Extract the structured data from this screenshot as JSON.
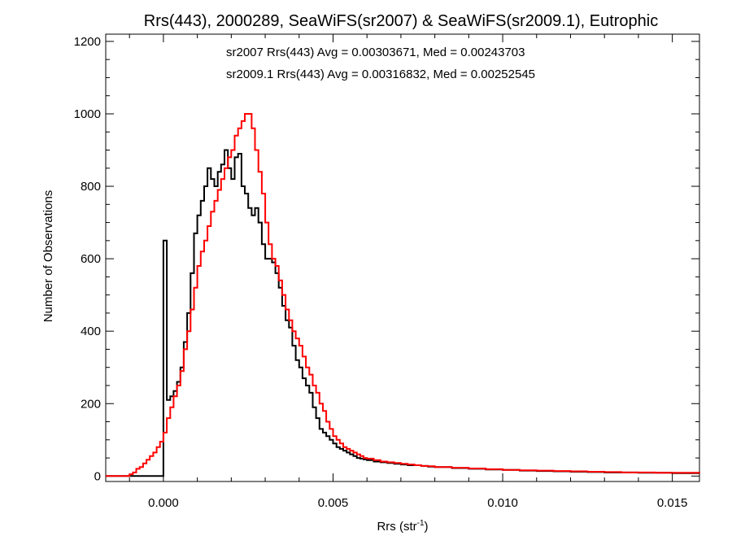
{
  "chart_data": {
    "type": "step-histogram",
    "title": "Rrs(443), 2000289, SeaWiFS(sr2007) & SeaWiFS(sr2009.1), Eutrophic",
    "xlabel_main": "Rrs (str",
    "xlabel_sup": "-1",
    "xlabel_close": ")",
    "ylabel": "Number of Observations",
    "xlim": [
      -0.0017,
      0.0158
    ],
    "ylim": [
      -15,
      1220
    ],
    "x_ticks": [
      0.0,
      0.005,
      0.01,
      0.015
    ],
    "x_tick_labels": [
      "0.000",
      "0.005",
      "0.010",
      "0.015"
    ],
    "y_ticks": [
      0,
      200,
      400,
      600,
      800,
      1000,
      1200
    ],
    "y_tick_labels": [
      "0",
      "200",
      "400",
      "600",
      "800",
      "1000",
      "1200"
    ],
    "annotations": [
      {
        "text": "sr2007 Rrs(443) Avg = 0.00303671, Med = 0.00243703",
        "color": "#000000"
      },
      {
        "text": "sr2009.1 Rrs(443) Avg = 0.00316832, Med = 0.00252545",
        "color": "#ff0000"
      }
    ],
    "series": [
      {
        "color": "#000000",
        "x": [
          -0.0017,
          -0.001,
          -0.0005,
          -0.0001,
          -5e-05,
          0,
          0.0001,
          0.0002,
          0.0003,
          0.0004,
          0.0005,
          0.0006,
          0.0007,
          0.0008,
          0.0009,
          0.001,
          0.0011,
          0.0012,
          0.0013,
          0.0014,
          0.0015,
          0.0016,
          0.0017,
          0.0018,
          0.0019,
          0.002,
          0.0021,
          0.0022,
          0.0023,
          0.0024,
          0.0025,
          0.0026,
          0.0027,
          0.0028,
          0.0029,
          0.003,
          0.0031,
          0.0032,
          0.0033,
          0.0034,
          0.0035,
          0.0036,
          0.0037,
          0.0038,
          0.0039,
          0.004,
          0.0041,
          0.0042,
          0.0043,
          0.0044,
          0.0045,
          0.0046,
          0.0047,
          0.0048,
          0.0049,
          0.005,
          0.0051,
          0.0052,
          0.0053,
          0.0054,
          0.0055,
          0.0056,
          0.0057,
          0.0058,
          0.0059,
          0.006,
          0.0062,
          0.0064,
          0.0066,
          0.0068,
          0.007,
          0.0072,
          0.0074,
          0.0076,
          0.0078,
          0.008,
          0.0085,
          0.009,
          0.0095,
          0.01,
          0.0105,
          0.011,
          0.0115,
          0.012,
          0.0125,
          0.013,
          0.0135,
          0.014,
          0.0145,
          0.015,
          0.0155,
          0.0158
        ],
        "values": [
          0,
          0,
          0,
          0,
          0,
          650,
          210,
          220,
          235,
          260,
          300,
          370,
          450,
          560,
          670,
          720,
          760,
          800,
          850,
          820,
          800,
          840,
          860,
          900,
          850,
          820,
          880,
          890,
          800,
          780,
          740,
          720,
          740,
          700,
          640,
          600,
          600,
          590,
          560,
          520,
          470,
          430,
          410,
          360,
          320,
          300,
          270,
          250,
          230,
          190,
          160,
          130,
          120,
          110,
          100,
          90,
          80,
          75,
          70,
          65,
          60,
          55,
          50,
          48,
          46,
          44,
          40,
          38,
          36,
          34,
          32,
          30,
          30,
          28,
          26,
          25,
          22,
          20,
          18,
          17,
          15,
          14,
          13,
          12,
          11,
          10,
          10,
          9,
          9,
          8,
          8,
          8
        ]
      },
      {
        "color": "#ff0000",
        "x": [
          -0.0017,
          -0.0012,
          -0.001,
          -0.0009,
          -0.0008,
          -0.0007,
          -0.0006,
          -0.0005,
          -0.0004,
          -0.0003,
          -0.0002,
          -0.0001,
          0,
          0.0001,
          0.0002,
          0.0003,
          0.0004,
          0.0005,
          0.0006,
          0.0007,
          0.0008,
          0.0009,
          0.001,
          0.0011,
          0.0012,
          0.0013,
          0.0014,
          0.0015,
          0.0016,
          0.0017,
          0.0018,
          0.0019,
          0.002,
          0.0021,
          0.0022,
          0.0023,
          0.0024,
          0.0025,
          0.0026,
          0.0027,
          0.0028,
          0.0029,
          0.003,
          0.0031,
          0.0032,
          0.0033,
          0.0034,
          0.0035,
          0.0036,
          0.0037,
          0.0038,
          0.0039,
          0.004,
          0.0041,
          0.0042,
          0.0043,
          0.0044,
          0.0045,
          0.0046,
          0.0047,
          0.0048,
          0.0049,
          0.005,
          0.0051,
          0.0052,
          0.0053,
          0.0054,
          0.0055,
          0.0056,
          0.0057,
          0.0058,
          0.0059,
          0.006,
          0.0062,
          0.0064,
          0.0066,
          0.0068,
          0.007,
          0.0072,
          0.0074,
          0.0076,
          0.0078,
          0.008,
          0.0085,
          0.009,
          0.0095,
          0.01,
          0.0105,
          0.011,
          0.0115,
          0.012,
          0.0125,
          0.013,
          0.0135,
          0.014,
          0.0145,
          0.015,
          0.0155,
          0.0158
        ],
        "values": [
          0,
          0,
          5,
          10,
          20,
          25,
          35,
          45,
          55,
          65,
          80,
          95,
          120,
          160,
          190,
          220,
          250,
          290,
          350,
          400,
          460,
          520,
          580,
          620,
          650,
          690,
          730,
          760,
          790,
          820,
          850,
          880,
          900,
          940,
          960,
          980,
          1000,
          1000,
          960,
          900,
          840,
          780,
          700,
          640,
          600,
          580,
          540,
          500,
          460,
          430,
          400,
          380,
          360,
          330,
          300,
          280,
          250,
          230,
          200,
          180,
          150,
          130,
          110,
          100,
          90,
          80,
          75,
          70,
          65,
          60,
          55,
          50,
          48,
          44,
          40,
          38,
          36,
          34,
          32,
          30,
          28,
          27,
          25,
          23,
          21,
          19,
          17,
          16,
          15,
          14,
          13,
          12,
          11,
          10,
          10,
          9,
          9,
          9,
          8
        ]
      }
    ]
  }
}
